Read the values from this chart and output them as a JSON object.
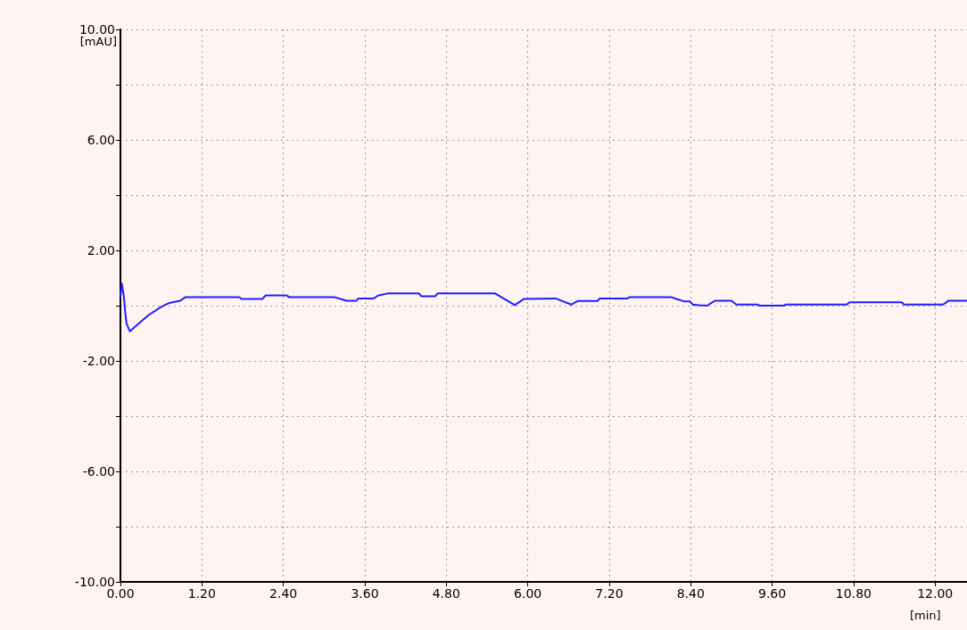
{
  "chart_data": {
    "type": "line",
    "xlabel": "[min]",
    "ylabel": "[mAU]",
    "xlim": [
      0,
      12.47
    ],
    "ylim": [
      -10,
      10
    ],
    "xticks": [
      {
        "value": 0,
        "label": "0.00"
      },
      {
        "value": 1.2,
        "label": "1.20"
      },
      {
        "value": 2.4,
        "label": "2.40"
      },
      {
        "value": 3.6,
        "label": "3.60"
      },
      {
        "value": 4.8,
        "label": "4.80"
      },
      {
        "value": 6,
        "label": "6.00"
      },
      {
        "value": 7.2,
        "label": "7.20"
      },
      {
        "value": 8.4,
        "label": "8.40"
      },
      {
        "value": 9.6,
        "label": "9.60"
      },
      {
        "value": 10.8,
        "label": "10.80"
      },
      {
        "value": 12,
        "label": "12.00"
      }
    ],
    "yticks": [
      {
        "value": -10,
        "label": "-10.00"
      },
      {
        "value": -8,
        "label": null
      },
      {
        "value": -6,
        "label": "-6.00"
      },
      {
        "value": -4,
        "label": null
      },
      {
        "value": -2,
        "label": "-2.00"
      },
      {
        "value": 0,
        "label": null
      },
      {
        "value": 2,
        "label": "2.00"
      },
      {
        "value": 4,
        "label": null
      },
      {
        "value": 6,
        "label": "6.00"
      },
      {
        "value": 8,
        "label": null
      },
      {
        "value": 10,
        "label": "10.00"
      }
    ],
    "grid": true,
    "marker": "none",
    "line_style": "solid",
    "series": [
      {
        "color": "#1f1fff",
        "x": [
          0,
          0.02,
          0.05,
          0.07,
          0.09,
          0.14,
          0.24,
          0.42,
          0.59,
          0.72,
          0.88,
          0.96,
          1.75,
          1.78,
          2.09,
          2.14,
          2.45,
          2.48,
          3.15,
          3.33,
          3.48,
          3.5,
          3.73,
          3.8,
          3.94,
          4.4,
          4.43,
          4.64,
          4.67,
          5.52,
          5.81,
          5.94,
          6.41,
          6.64,
          6.74,
          7.03,
          7.06,
          7.47,
          7.5,
          8.11,
          8.19,
          8.31,
          8.39,
          8.43,
          8.52,
          8.64,
          8.76,
          9.0,
          9.07,
          9.38,
          9.42,
          9.77,
          9.8,
          10.7,
          10.74,
          11.51,
          11.54,
          12.12,
          12.2,
          12.47
        ],
        "values": [
          0.3,
          0.8,
          0.35,
          -0.23,
          -0.65,
          -0.93,
          -0.71,
          -0.33,
          -0.06,
          0.1,
          0.18,
          0.31,
          0.31,
          0.24,
          0.24,
          0.37,
          0.37,
          0.31,
          0.31,
          0.18,
          0.18,
          0.26,
          0.26,
          0.37,
          0.44,
          0.44,
          0.34,
          0.34,
          0.44,
          0.44,
          0.02,
          0.24,
          0.26,
          0.04,
          0.17,
          0.17,
          0.26,
          0.26,
          0.31,
          0.31,
          0.24,
          0.15,
          0.15,
          0.04,
          0.02,
          0.0,
          0.18,
          0.18,
          0.04,
          0.04,
          0.0,
          0.0,
          0.04,
          0.04,
          0.12,
          0.12,
          0.04,
          0.04,
          0.18,
          0.18
        ]
      }
    ]
  }
}
